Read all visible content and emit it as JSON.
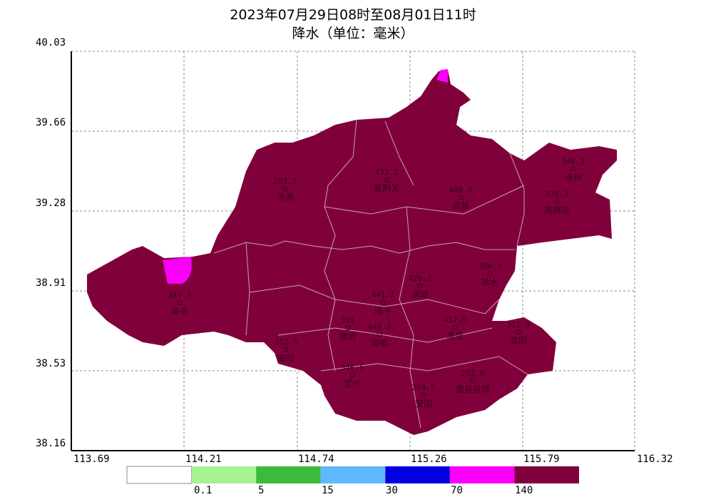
{
  "title": {
    "line1": "2023年07月29日08时至08月01日11时",
    "line2": "降水（单位：毫米）"
  },
  "axes": {
    "y_ticks": [
      "40.03",
      "39.66",
      "39.28",
      "38.91",
      "38.53",
      "38.16"
    ],
    "x_ticks": [
      "113.69",
      "114.21",
      "114.74",
      "115.26",
      "115.79",
      "116.32"
    ],
    "grid": true
  },
  "fill_color": "#80003c",
  "stations": [
    {
      "name": "涞源",
      "value": "283.7"
    },
    {
      "name": "紫荆关",
      "value": "733.2"
    },
    {
      "name": "易县",
      "value": "488.9"
    },
    {
      "name": "涿州",
      "value": "346.1"
    },
    {
      "name": "高碑店",
      "value": "375.3"
    },
    {
      "name": "阜平",
      "value": "347.7"
    },
    {
      "name": "顺平",
      "value": "441.2"
    },
    {
      "name": "满城",
      "value": "426.2"
    },
    {
      "name": "徐水",
      "value": "396.1"
    },
    {
      "name": "唐县",
      "value": "391"
    },
    {
      "name": "望都",
      "value": "448.2"
    },
    {
      "name": "清苑",
      "value": "417.5"
    },
    {
      "name": "高阳",
      "value": "312.9"
    },
    {
      "name": "曲阳",
      "value": "312.5"
    },
    {
      "name": "定州",
      "value": "346.5"
    },
    {
      "name": "安国",
      "value": "269.5"
    },
    {
      "name": "蠡县县城",
      "value": "282.6"
    }
  ],
  "legend": {
    "colors": [
      "#ffffff",
      "#a6f28f",
      "#3dba3d",
      "#61b8ff",
      "#0000e1",
      "#fa00fa",
      "#80003c"
    ],
    "labels": [
      "0.1",
      "5",
      "15",
      "30",
      "70",
      "140"
    ]
  }
}
